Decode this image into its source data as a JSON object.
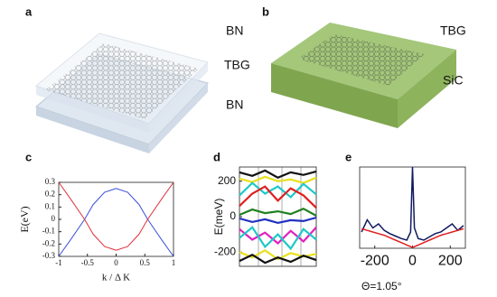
{
  "figure": {
    "panel_letters": [
      "a",
      "b",
      "c",
      "d",
      "e"
    ],
    "a_labels": [
      "BN",
      "TBG",
      "BN"
    ],
    "b_labels": [
      "TBG",
      "SiC"
    ],
    "twist_angle": "Θ=1.05°"
  },
  "chart_data": [
    {
      "type": "line",
      "xlabel": "k / Δ K",
      "ylabel": "E(eV)",
      "x": [
        -1,
        -0.8,
        -0.55,
        -0.4,
        -0.2,
        0,
        0.2,
        0.4,
        0.55,
        0.8,
        1
      ],
      "series": [
        {
          "color": "#3b4fd8",
          "values": [
            -0.3,
            -0.17,
            0,
            0.12,
            0.22,
            0.25,
            0.22,
            0.12,
            0,
            -0.17,
            -0.3
          ]
        },
        {
          "color": "#e0303a",
          "values": [
            0.3,
            0.17,
            0,
            -0.12,
            -0.22,
            -0.25,
            -0.22,
            -0.12,
            0,
            0.17,
            0.3
          ]
        }
      ],
      "xlim": [
        -1,
        1
      ],
      "xticks": [
        -1,
        -0.5,
        0,
        0.5,
        1
      ],
      "ylim": [
        -0.3,
        0.3
      ],
      "yticks": [
        -0.3,
        -0.2,
        -0.1,
        0,
        0.1,
        0.2,
        0.3
      ]
    },
    {
      "type": "line",
      "ylabel": "E(meV)",
      "x": [
        0,
        1,
        2,
        3,
        4,
        5,
        6
      ],
      "series": [
        {
          "color": "#111111",
          "values": [
            250,
            230,
            260,
            220,
            250,
            235,
            255
          ]
        },
        {
          "color": "#e8e020",
          "values": [
            215,
            195,
            225,
            200,
            210,
            190,
            220
          ]
        },
        {
          "color": "#20c8c8",
          "values": [
            120,
            190,
            130,
            170,
            110,
            185,
            125
          ]
        },
        {
          "color": "#e02020",
          "values": [
            60,
            130,
            170,
            90,
            160,
            120,
            50
          ]
        },
        {
          "color": "#208020",
          "values": [
            10,
            40,
            20,
            30,
            15,
            45,
            5
          ]
        },
        {
          "color": "#2030c0",
          "values": [
            -10,
            -30,
            -15,
            -35,
            -20,
            -25,
            -5
          ]
        },
        {
          "color": "#e020c0",
          "values": [
            -70,
            -130,
            -90,
            -150,
            -80,
            -140,
            -60
          ]
        },
        {
          "color": "#20c8c8",
          "values": [
            -120,
            -60,
            -170,
            -100,
            -180,
            -70,
            -130
          ]
        },
        {
          "color": "#e8e020",
          "values": [
            -200,
            -230,
            -190,
            -240,
            -205,
            -225,
            -210
          ]
        },
        {
          "color": "#111111",
          "values": [
            -250,
            -215,
            -260,
            -230,
            -255,
            -220,
            -245
          ]
        }
      ],
      "xlim": [
        0,
        6
      ],
      "ylim": [
        -280,
        280
      ],
      "yticks": [
        -200,
        0,
        200
      ]
    },
    {
      "type": "line",
      "x": [
        -270,
        -240,
        -210,
        -180,
        -150,
        -120,
        -90,
        -60,
        -30,
        -10,
        0,
        10,
        30,
        60,
        90,
        120,
        150,
        180,
        210,
        240,
        270
      ],
      "series": [
        {
          "color": "#101a60",
          "values": [
            20,
            35,
            25,
            30,
            22,
            18,
            15,
            12,
            10,
            20,
            100,
            25,
            12,
            10,
            14,
            18,
            20,
            25,
            30,
            22,
            28
          ]
        },
        {
          "color": "#e02020",
          "values": [
            24,
            22,
            20,
            18,
            16,
            13,
            10,
            7,
            4,
            2,
            1,
            2,
            4,
            7,
            10,
            13,
            16,
            18,
            20,
            22,
            24
          ]
        }
      ],
      "xlim": [
        -280,
        280
      ],
      "xticks": [
        -200,
        0,
        200
      ],
      "ylim": [
        0,
        100
      ]
    }
  ]
}
